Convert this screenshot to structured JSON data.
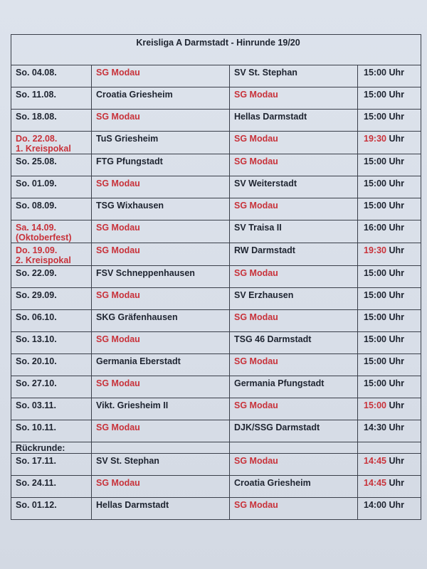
{
  "title": "Kreisliga A Darmstadt - Hinrunde 19/20",
  "colors": {
    "highlight": "#c8323a",
    "text": "#1e2430"
  },
  "time_unit": "Uhr",
  "rows": [
    {
      "date": "So. 04.08.",
      "home": "SG Modau",
      "away": "SV St. Stephan",
      "time": "15:00"
    },
    {
      "date": "So. 11.08.",
      "home": "Croatia Griesheim",
      "away": "SG Modau",
      "time": "15:00"
    },
    {
      "date": "So. 18.08.",
      "home": "SG Modau",
      "away": "Hellas Darmstadt",
      "time": "15:00"
    },
    {
      "date": "Do. 22.08.",
      "note": "1. Kreispokal",
      "date_red": true,
      "home": "TuS Griesheim",
      "away": "SG Modau",
      "time": "19:30",
      "time_red": true
    },
    {
      "date": "So. 25.08.",
      "home": "FTG Pfungstadt",
      "away": "SG Modau",
      "time": "15:00"
    },
    {
      "date": "So. 01.09.",
      "home": "SG Modau",
      "away": "SV Weiterstadt",
      "time": "15:00"
    },
    {
      "date": "So. 08.09.",
      "home": "TSG Wixhausen",
      "away": "SG Modau",
      "time": "15:00"
    },
    {
      "date": "Sa. 14.09.",
      "note": "(Oktoberfest)",
      "date_red": true,
      "home": "SG Modau",
      "away": "SV Traisa II",
      "time": "16:00"
    },
    {
      "date": "Do. 19.09.",
      "note": "2. Kreispokal",
      "date_red": true,
      "home": "SG Modau",
      "away": "RW Darmstadt",
      "time": "19:30",
      "time_red": true
    },
    {
      "date": "So. 22.09.",
      "home": "FSV Schneppenhausen",
      "away": "SG Modau",
      "time": "15:00"
    },
    {
      "date": "So. 29.09.",
      "home": "SG Modau",
      "away": "SV Erzhausen",
      "time": "15:00"
    },
    {
      "date": "So. 06.10.",
      "home": "SKG Gräfenhausen",
      "away": "SG Modau",
      "time": "15:00"
    },
    {
      "date": "So. 13.10.",
      "home": "SG Modau",
      "away": "TSG 46 Darmstadt",
      "time": "15:00"
    },
    {
      "date": "So. 20.10.",
      "home": "Germania Eberstadt",
      "away": "SG Modau",
      "time": "15:00"
    },
    {
      "date": "So. 27.10.",
      "home": "SG Modau",
      "away": "Germania Pfungstadt",
      "time": "15:00"
    },
    {
      "date": "So. 03.11.",
      "home": "Vikt. Griesheim II",
      "away": "SG Modau",
      "time": "15:00",
      "time_red": true
    },
    {
      "date": "So. 10.11.",
      "home": "SG Modau",
      "away": "DJK/SSG Darmstadt",
      "time": "14:30"
    },
    {
      "section": "Rückrunde:"
    },
    {
      "date": "So. 17.11.",
      "home": "SV St. Stephan",
      "away": "SG Modau",
      "time": "14:45",
      "time_red": true
    },
    {
      "date": "So. 24.11.",
      "home": "SG Modau",
      "away": "Croatia Griesheim",
      "time": "14:45",
      "time_red": true
    },
    {
      "date": "So. 01.12.",
      "home": "Hellas Darmstadt",
      "away": "SG Modau",
      "time": "14:00"
    }
  ]
}
